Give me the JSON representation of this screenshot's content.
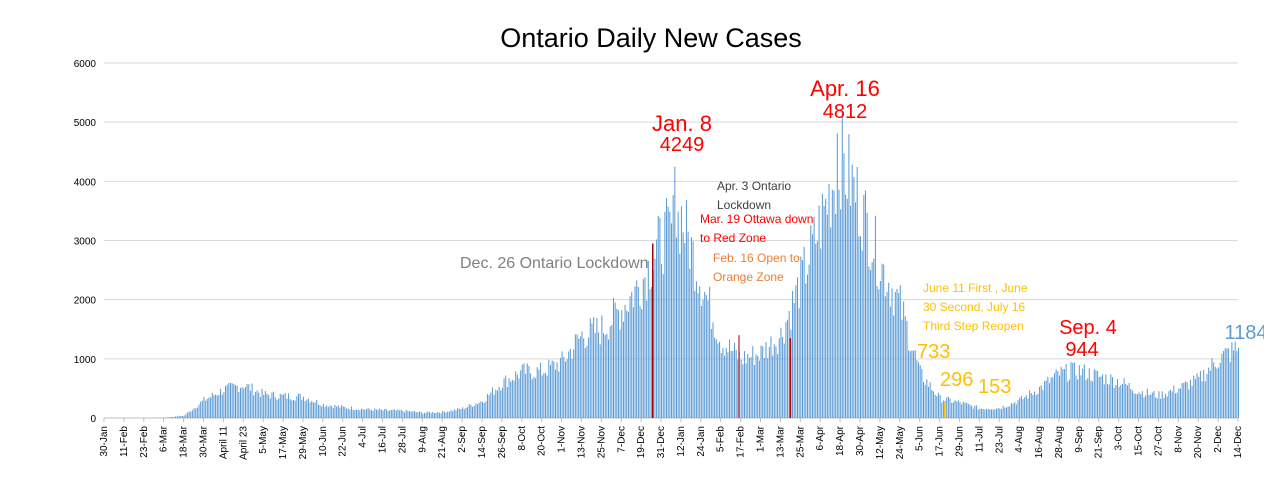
{
  "chart_data": {
    "type": "bar",
    "title": "Ontario Daily New Cases",
    "xlabel": "",
    "ylabel": "",
    "ylim": [
      0,
      6000
    ],
    "yticks": [
      0,
      1000,
      2000,
      3000,
      4000,
      5000,
      6000
    ],
    "grid": true,
    "x_ticks": [
      "30-Jan",
      "11-Feb",
      "23-Feb",
      "6-Mar",
      "18-Mar",
      "30-Mar",
      "April 11",
      "April 23",
      "5-May",
      "17-May",
      "29-May",
      "10-Jun",
      "22-Jun",
      "4-Jul",
      "16-Jul",
      "28-Jul",
      "9-Aug",
      "21-Aug",
      "2-Sep",
      "14-Sep",
      "26-Sep",
      "8-Oct",
      "20-Oct",
      "1-Nov",
      "13-Nov",
      "25-Nov",
      "7-Dec",
      "19-Dec",
      "31-Dec",
      "12-Jan",
      "24-Jan",
      "5-Feb",
      "17-Feb",
      "1-Mar",
      "13-Mar",
      "25-Mar",
      "6-Apr",
      "18-Apr",
      "30-Apr",
      "12-May",
      "24-May",
      "5-Jun",
      "17-Jun",
      "29-Jun",
      "11-Jul",
      "23-Jul",
      "4-Aug",
      "16-Aug",
      "28-Aug",
      "9-Sep",
      "21-Sep",
      "3-Oct",
      "15-Oct",
      "27-Oct",
      "8-Nov",
      "20-Nov",
      "2-Dec",
      "14-Dec"
    ],
    "series": [
      {
        "color": "#5b9bd5",
        "anchors": [
          [
            "30-Jan",
            0
          ],
          [
            "11-Feb",
            0
          ],
          [
            "23-Feb",
            0
          ],
          [
            "6-Mar",
            5
          ],
          [
            "18-Mar",
            40
          ],
          [
            "30-Mar",
            300
          ],
          [
            "April 11",
            480
          ],
          [
            "April 23",
            560
          ],
          [
            "5-May",
            400
          ],
          [
            "17-May",
            370
          ],
          [
            "29-May",
            360
          ],
          [
            "10-Jun",
            230
          ],
          [
            "22-Jun",
            180
          ],
          [
            "4-Jul",
            150
          ],
          [
            "16-Jul",
            130
          ],
          [
            "28-Jul",
            120
          ],
          [
            "9-Aug",
            90
          ],
          [
            "21-Aug",
            100
          ],
          [
            "2-Sep",
            160
          ],
          [
            "14-Sep",
            290
          ],
          [
            "26-Sep",
            600
          ],
          [
            "8-Oct",
            780
          ],
          [
            "20-Oct",
            790
          ],
          [
            "1-Nov",
            950
          ],
          [
            "13-Nov",
            1400
          ],
          [
            "25-Nov",
            1500
          ],
          [
            "7-Dec",
            1850
          ],
          [
            "19-Dec",
            2300
          ],
          [
            "31-Dec",
            3000
          ],
          [
            "12-Jan",
            3400
          ],
          [
            "24-Jan",
            2300
          ],
          [
            "5-Feb",
            1300
          ],
          [
            "17-Feb",
            1000
          ],
          [
            "1-Mar",
            1100
          ],
          [
            "13-Mar",
            1400
          ],
          [
            "25-Mar",
            2300
          ],
          [
            "6-Apr",
            3300
          ],
          [
            "18-Apr",
            4400
          ],
          [
            "30-Apr",
            3600
          ],
          [
            "12-May",
            2600
          ],
          [
            "24-May",
            1900
          ],
          [
            "5-Jun",
            750
          ],
          [
            "17-Jun",
            330
          ],
          [
            "29-Jun",
            260
          ],
          [
            "11-Jul",
            160
          ],
          [
            "23-Jul",
            170
          ],
          [
            "4-Aug",
            300
          ],
          [
            "16-Aug",
            500
          ],
          [
            "28-Aug",
            750
          ],
          [
            "9-Sep",
            800
          ],
          [
            "21-Sep",
            700
          ],
          [
            "3-Oct",
            620
          ],
          [
            "15-Oct",
            450
          ],
          [
            "27-Oct",
            380
          ],
          [
            "8-Nov",
            500
          ],
          [
            "20-Nov",
            650
          ],
          [
            "2-Dec",
            1000
          ],
          [
            "14-Dec",
            1184
          ]
        ]
      }
    ],
    "annotations": [
      {
        "text": "Jan. 8",
        "color": "#ff0000"
      },
      {
        "text": "4249",
        "color": "#ff0000"
      },
      {
        "text": "Apr. 16",
        "color": "#ff0000"
      },
      {
        "text": "4812",
        "color": "#ff0000"
      },
      {
        "text": "Apr. 3 Ontario",
        "color": "#404040"
      },
      {
        "text": "Lockdown",
        "color": "#404040"
      },
      {
        "text": "Mar. 19 Ottawa down",
        "color": "#ff0000"
      },
      {
        "text": "to Red Zone",
        "color": "#ff0000"
      },
      {
        "text": "Feb. 16 Open to",
        "color": "#ed7d31"
      },
      {
        "text": "Orange Zone",
        "color": "#ed7d31"
      },
      {
        "text": "Dec. 26 Ontario Lockdown",
        "color": "#7f7f7f"
      },
      {
        "text": "June 11 First , June",
        "color": "#ffc000"
      },
      {
        "text": "30 Second, July 16",
        "color": "#ffc000"
      },
      {
        "text": "Third Step Reopen",
        "color": "#ffc000"
      },
      {
        "text": "733",
        "color": "#ffc000"
      },
      {
        "text": "296",
        "color": "#ffc000"
      },
      {
        "text": "153",
        "color": "#ffc000"
      },
      {
        "text": "Sep. 4",
        "color": "#ff0000"
      },
      {
        "text": "944",
        "color": "#ff0000"
      },
      {
        "text": "1184",
        "color": "#5b9bd5"
      }
    ],
    "peaks": [
      {
        "date": "Jan. 8",
        "value": 4249
      },
      {
        "date": "Apr. 16",
        "value": 4812
      },
      {
        "date": "Sep. 4",
        "value": 944
      },
      {
        "date": "latest",
        "value": 1184
      }
    ]
  }
}
